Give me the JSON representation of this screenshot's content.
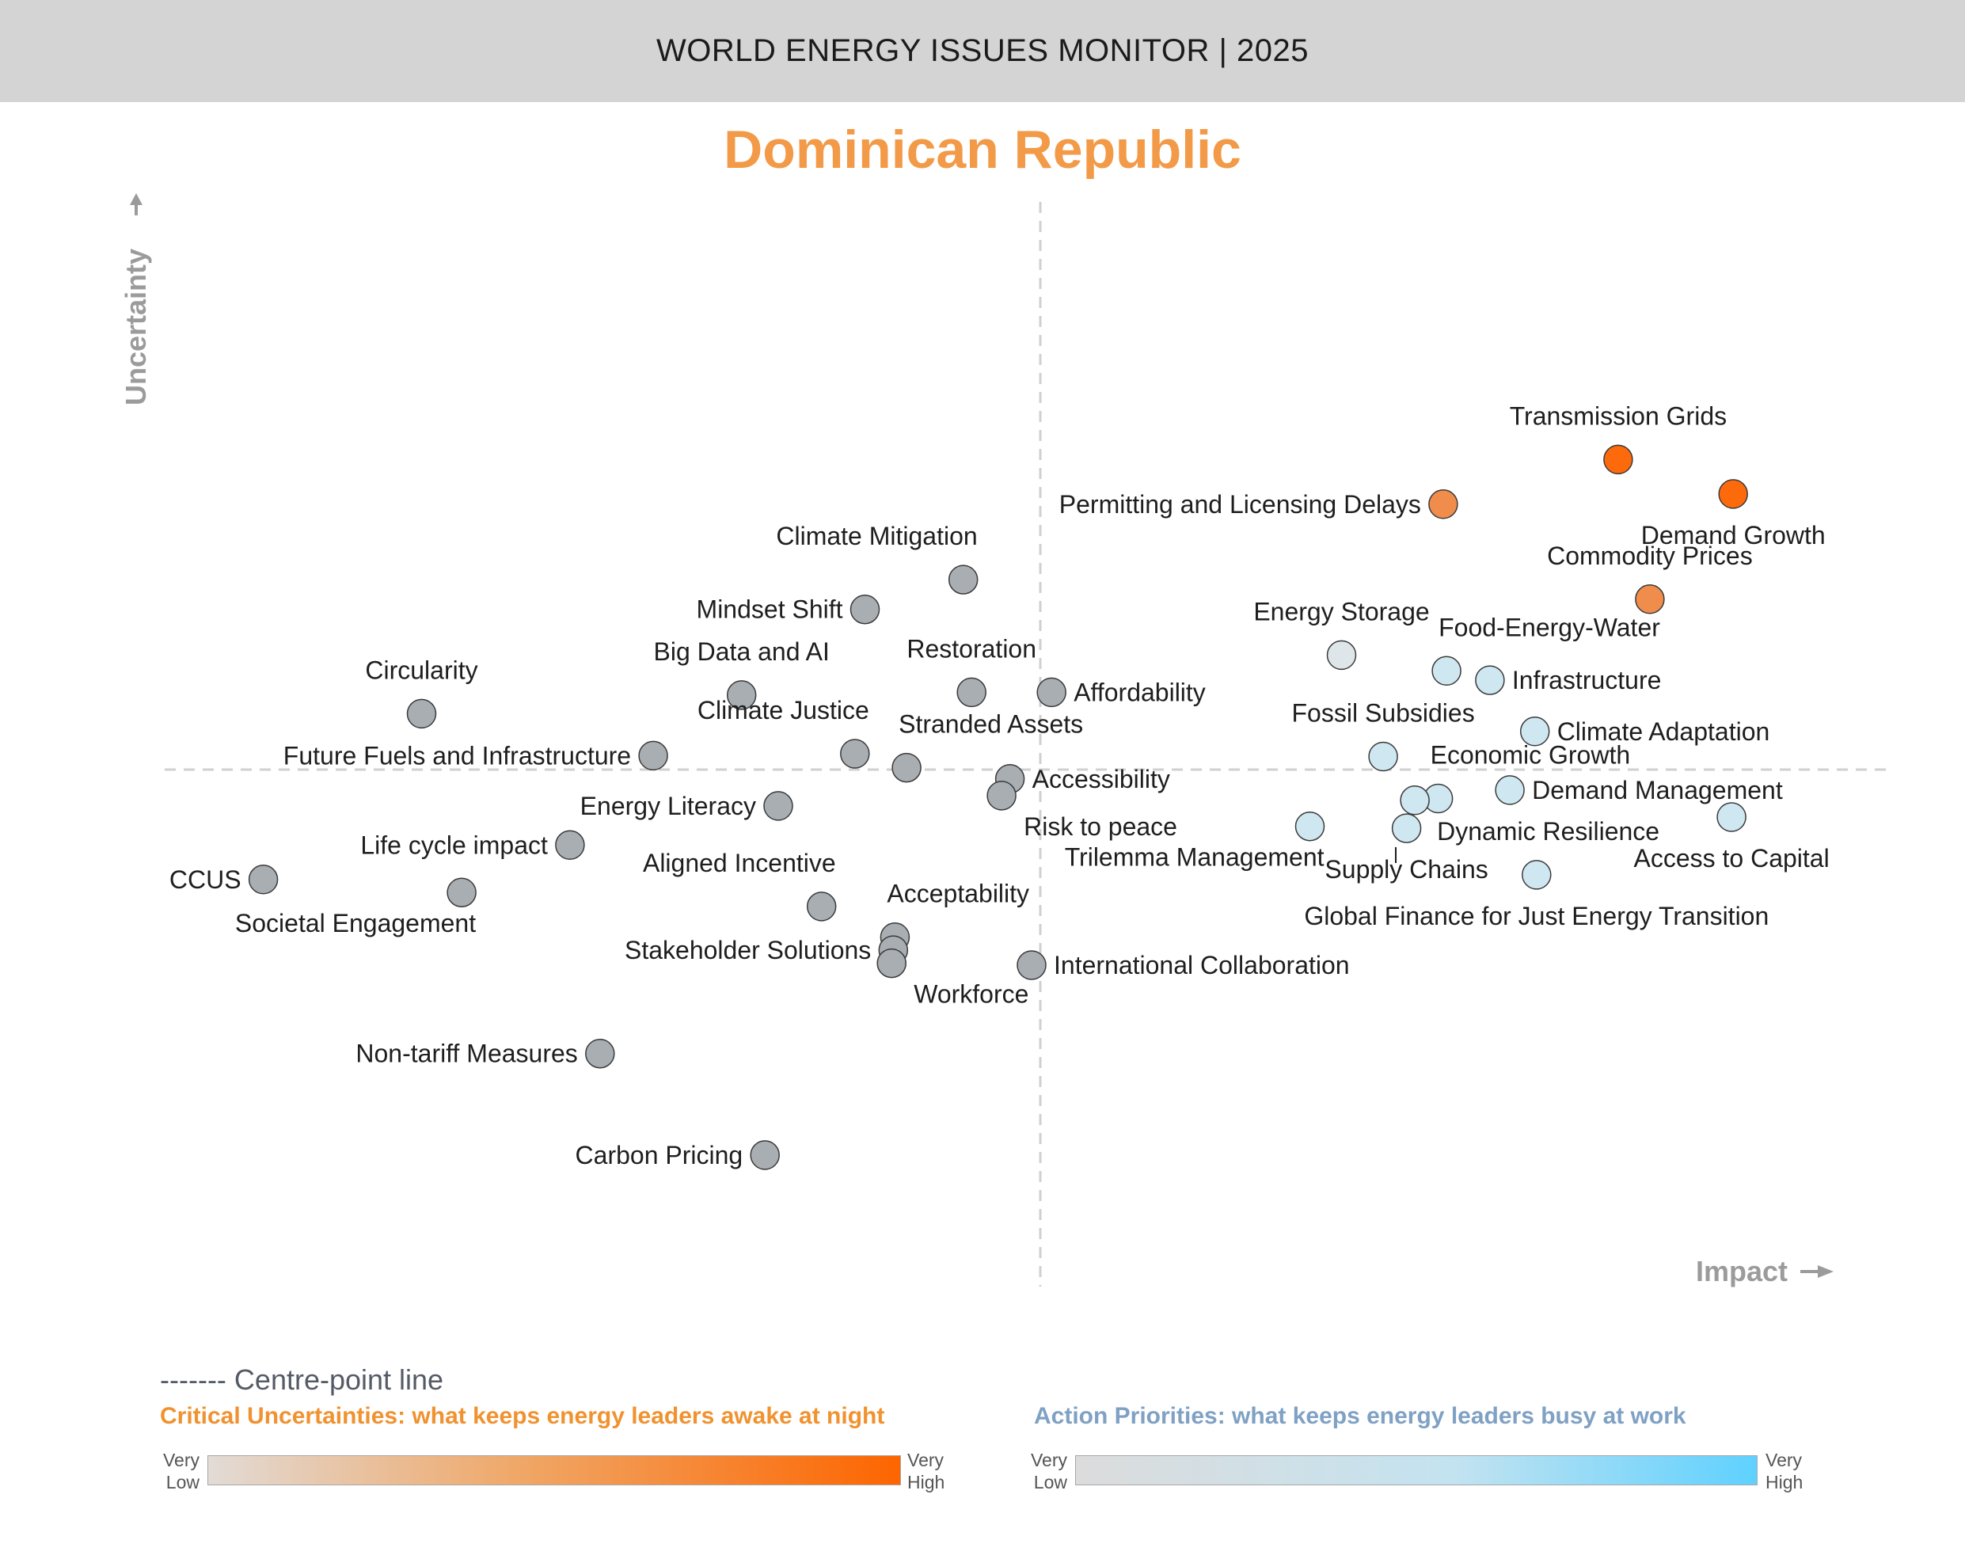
{
  "header": {
    "title": "WORLD ENERGY ISSUES MONITOR | 2025"
  },
  "country": "Dominican Republic",
  "axes": {
    "x_label": "Impact",
    "y_label": "Uncertainty"
  },
  "legend": {
    "centre_line": "------- Centre-point line",
    "critical_title": "Critical Uncertainties: what keeps energy leaders awake at night",
    "action_title": "Action Priorities: what keeps energy leaders busy at work",
    "scale_low_1": "Very",
    "scale_low_2": "Low",
    "scale_high_1": "Very",
    "scale_high_2": "High"
  },
  "colors": {
    "dark_orange": "#fd6a0c",
    "orange": "#f08d4c",
    "grey": "#a9aeb3",
    "light_blue": "#cfe7f1",
    "pale": "#dfe6ea",
    "title_orange": "#f29a47",
    "action_blue": "#7fa1c4"
  },
  "chart_data": {
    "type": "scatter",
    "title": "Dominican Republic",
    "xlabel": "Impact",
    "ylabel": "Uncertainty",
    "xlim": [
      0,
      100
    ],
    "ylim": [
      0,
      100
    ],
    "centre": {
      "x": 50,
      "y": 50
    },
    "points": [
      {
        "name": "Transmission Grids",
        "x": 84.7,
        "y": 83.3,
        "category": "critical-high",
        "label_pos": "above"
      },
      {
        "name": "Demand Growth",
        "x": 91.6,
        "y": 79.6,
        "category": "critical-high",
        "label_pos": "below"
      },
      {
        "name": "Permitting and Licensing Delays",
        "x": 74.2,
        "y": 78.5,
        "category": "critical",
        "label_pos": "left"
      },
      {
        "name": "Commodity Prices",
        "x": 86.6,
        "y": 68.3,
        "category": "critical",
        "label_pos": "above"
      },
      {
        "name": "Climate Mitigation",
        "x": 45.4,
        "y": 70.4,
        "category": "neutral",
        "label_pos": "above-left"
      },
      {
        "name": "Mindset Shift",
        "x": 39.5,
        "y": 67.2,
        "category": "neutral",
        "label_pos": "left"
      },
      {
        "name": "Energy Storage",
        "x": 68.1,
        "y": 62.3,
        "category": "pale",
        "label_pos": "above"
      },
      {
        "name": "Food-Energy-Water",
        "x": 74.4,
        "y": 60.6,
        "category": "action",
        "label_pos": "above-right"
      },
      {
        "name": "Infrastructure",
        "x": 77.0,
        "y": 59.6,
        "category": "action",
        "label_pos": "right"
      },
      {
        "name": "Circularity",
        "x": 12.9,
        "y": 56.0,
        "category": "neutral",
        "label_pos": "above"
      },
      {
        "name": "Big Data and AI",
        "x": 32.1,
        "y": 58.0,
        "category": "neutral",
        "label_pos": "above"
      },
      {
        "name": "Restoration",
        "x": 45.9,
        "y": 58.3,
        "category": "neutral",
        "label_pos": "above"
      },
      {
        "name": "Affordability",
        "x": 50.7,
        "y": 58.3,
        "category": "neutral",
        "label_pos": "right"
      },
      {
        "name": "Climate Adaptation",
        "x": 79.7,
        "y": 54.1,
        "category": "action",
        "label_pos": "right"
      },
      {
        "name": "Future Fuels and Infrastructure",
        "x": 26.8,
        "y": 51.5,
        "category": "neutral",
        "label_pos": "left"
      },
      {
        "name": "Climate Justice",
        "x": 38.9,
        "y": 51.7,
        "category": "neutral",
        "label_pos": "above-left"
      },
      {
        "name": "Stranded Assets",
        "x": 42.0,
        "y": 50.2,
        "category": "neutral",
        "label_pos": "above-right"
      },
      {
        "name": "Fossil Subsidies",
        "x": 70.6,
        "y": 51.4,
        "category": "action",
        "label_pos": "above"
      },
      {
        "name": "Economic Growth",
        "x": 73.9,
        "y": 46.9,
        "category": "action",
        "label_pos": "above-right"
      },
      {
        "name": "Demand Management",
        "x": 78.2,
        "y": 47.8,
        "category": "action",
        "label_pos": "right"
      },
      {
        "name": "Accessibility",
        "x": 48.2,
        "y": 49.0,
        "category": "neutral",
        "label_pos": "right"
      },
      {
        "name": "Risk to peace",
        "x": 47.7,
        "y": 47.2,
        "category": "neutral",
        "label_pos": "below-right"
      },
      {
        "name": "Dynamic Resilience",
        "x": 72.5,
        "y": 46.7,
        "category": "action",
        "label_pos": "below-right"
      },
      {
        "name": "Supply Chains",
        "x": 72.0,
        "y": 43.7,
        "category": "action",
        "label_pos": "below"
      },
      {
        "name": "Trilemma Management",
        "x": 66.2,
        "y": 43.9,
        "category": "action",
        "label_pos": "below-left"
      },
      {
        "name": "Access to Capital",
        "x": 91.5,
        "y": 44.9,
        "category": "action",
        "label_pos": "below"
      },
      {
        "name": "Global Finance for Just Energy Transition",
        "x": 79.8,
        "y": 38.7,
        "category": "action",
        "label_pos": "below"
      },
      {
        "name": "Energy Literacy",
        "x": 34.3,
        "y": 46.1,
        "category": "neutral",
        "label_pos": "left"
      },
      {
        "name": "Life cycle impact",
        "x": 21.8,
        "y": 41.9,
        "category": "neutral",
        "label_pos": "left"
      },
      {
        "name": "CCUS",
        "x": 3.4,
        "y": 38.2,
        "category": "neutral",
        "label_pos": "left"
      },
      {
        "name": "Societal Engagement",
        "x": 15.3,
        "y": 36.8,
        "category": "neutral",
        "label_pos": "below-left"
      },
      {
        "name": "Aligned Incentive",
        "x": 36.9,
        "y": 35.3,
        "category": "neutral",
        "label_pos": "above-left"
      },
      {
        "name": "Acceptability",
        "x": 41.3,
        "y": 32.0,
        "category": "neutral",
        "label_pos": "above-right"
      },
      {
        "name": "Stakeholder Solutions",
        "x": 41.2,
        "y": 30.6,
        "category": "neutral",
        "label_pos": "left"
      },
      {
        "name": "Workforce",
        "x": 41.1,
        "y": 29.2,
        "category": "neutral",
        "label_pos": "below-right"
      },
      {
        "name": "International Collaboration",
        "x": 49.5,
        "y": 29.0,
        "category": "neutral",
        "label_pos": "right"
      },
      {
        "name": "Non-tariff Measures",
        "x": 23.6,
        "y": 19.5,
        "category": "neutral",
        "label_pos": "left"
      },
      {
        "name": "Carbon Pricing",
        "x": 33.5,
        "y": 8.6,
        "category": "neutral",
        "label_pos": "left"
      }
    ]
  }
}
